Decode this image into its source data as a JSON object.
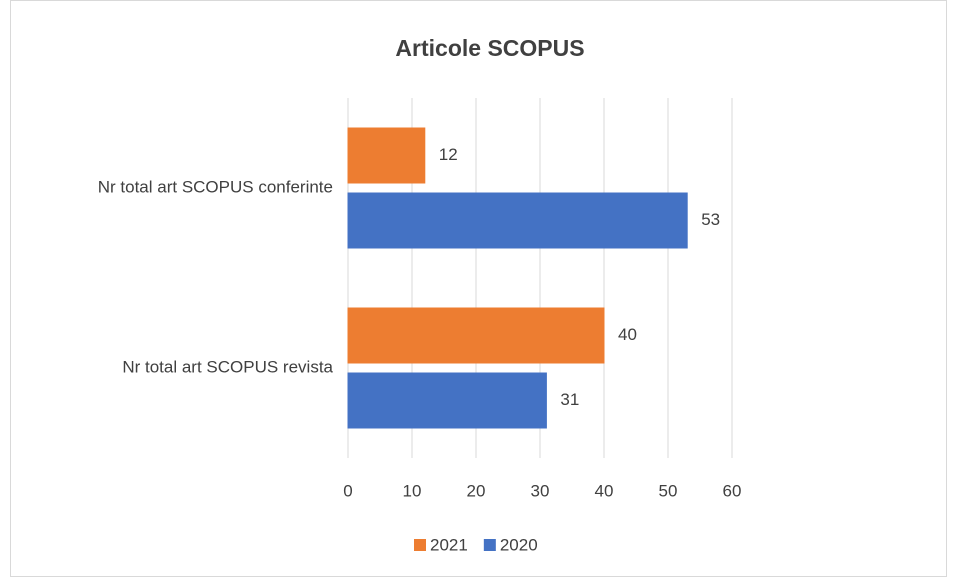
{
  "chart_data": {
    "type": "bar",
    "orientation": "horizontal",
    "title": "Articole SCOPUS",
    "categories": [
      "Nr total art SCOPUS conferinte",
      "Nr total art SCOPUS revista"
    ],
    "series": [
      {
        "name": "2021",
        "color": "#ed7d31",
        "values": [
          12,
          40
        ]
      },
      {
        "name": "2020",
        "color": "#4472c4",
        "values": [
          53,
          31
        ]
      }
    ],
    "xlim": [
      0,
      60
    ],
    "xticks": [
      0,
      10,
      20,
      30,
      40,
      50,
      60
    ],
    "grid": true,
    "legend": "bottom"
  }
}
